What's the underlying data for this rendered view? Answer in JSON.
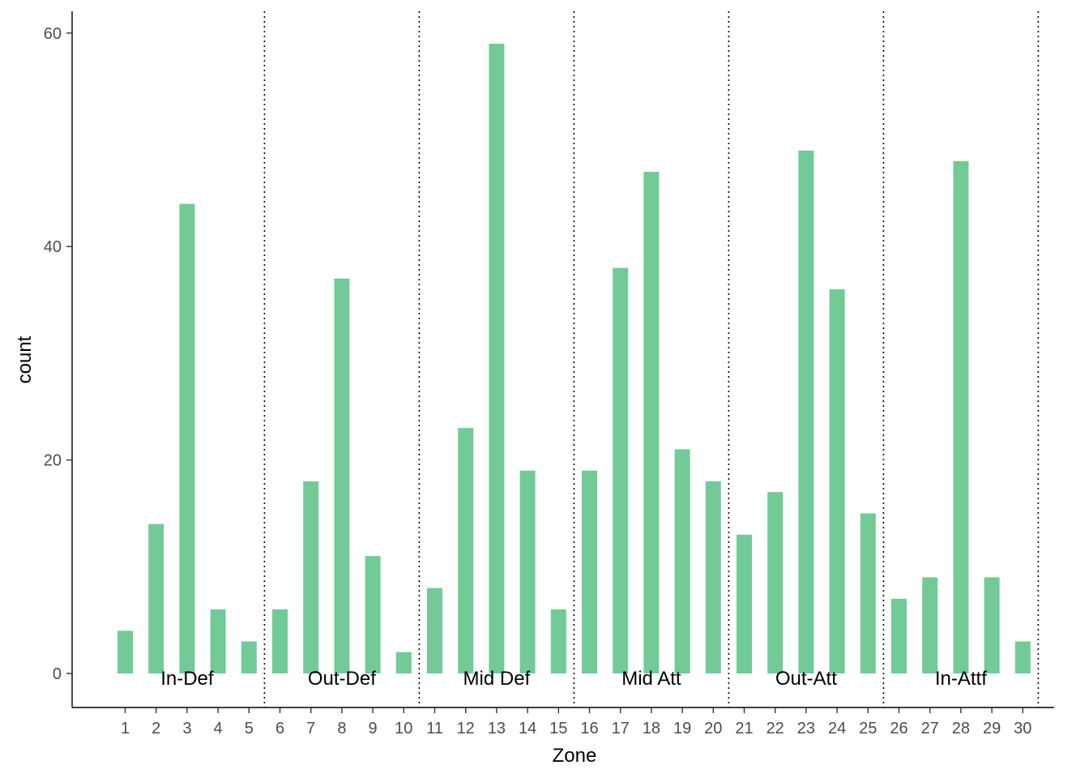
{
  "chart_data": {
    "type": "bar",
    "categories": [
      "1",
      "2",
      "3",
      "4",
      "5",
      "6",
      "7",
      "8",
      "9",
      "10",
      "11",
      "12",
      "13",
      "14",
      "15",
      "16",
      "17",
      "18",
      "19",
      "20",
      "21",
      "22",
      "23",
      "24",
      "25",
      "26",
      "27",
      "28",
      "29",
      "30"
    ],
    "values": [
      4,
      14,
      44,
      6,
      3,
      6,
      18,
      37,
      11,
      2,
      8,
      23,
      59,
      19,
      6,
      19,
      38,
      47,
      21,
      18,
      13,
      17,
      49,
      36,
      15,
      7,
      9,
      48,
      9,
      3
    ],
    "xlabel": "Zone",
    "ylabel": "count",
    "ylim": [
      0,
      60
    ],
    "yticks": [
      0,
      20,
      40,
      60
    ],
    "grid": false,
    "bar_color": "#72CA97",
    "groups": [
      {
        "label": "In-Def",
        "from": 1,
        "to": 5
      },
      {
        "label": "Out-Def",
        "from": 6,
        "to": 10
      },
      {
        "label": "Mid Def",
        "from": 11,
        "to": 15
      },
      {
        "label": "Mid Att",
        "from": 16,
        "to": 20
      },
      {
        "label": "Out-Att",
        "from": 21,
        "to": 25
      },
      {
        "label": "In-Attf",
        "from": 26,
        "to": 30
      }
    ],
    "separators_after": [
      5,
      10,
      15,
      20,
      25,
      30
    ]
  }
}
